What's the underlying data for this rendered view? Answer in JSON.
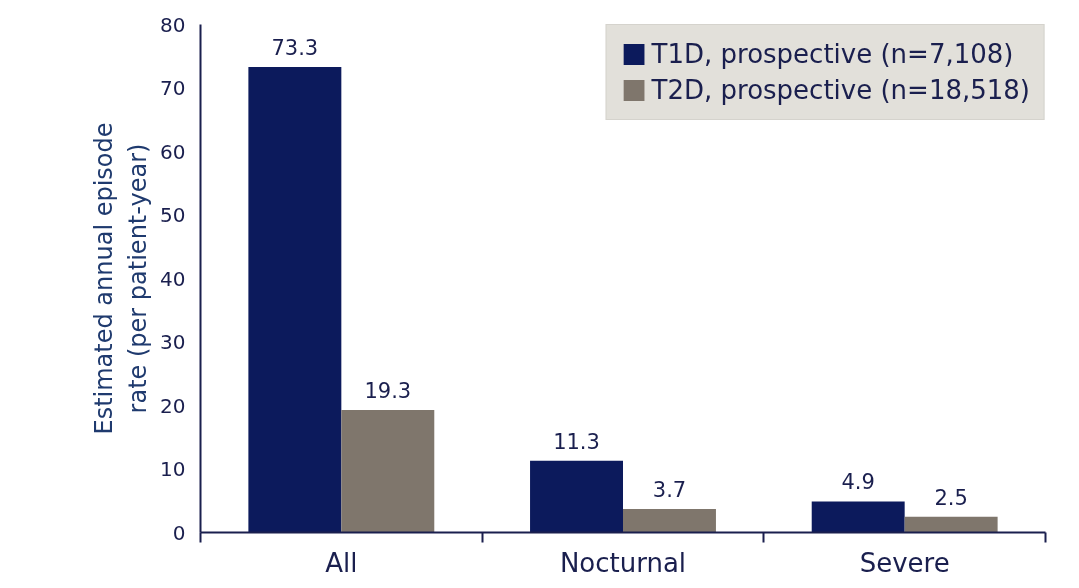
{
  "chart_data": {
    "type": "bar",
    "ylabel": "Estimated annual episode\nrate (per patient-year)",
    "categories": [
      "All",
      "Nocturnal",
      "Severe"
    ],
    "series": [
      {
        "name": "T1D, prospective (n=7,108)",
        "color": "#0c1a5c",
        "values": [
          73.3,
          11.3,
          4.9
        ]
      },
      {
        "name": "T2D, prospective (n=18,518)",
        "color": "#7f766c",
        "values": [
          19.3,
          3.7,
          2.5
        ]
      }
    ],
    "ylim": [
      0,
      80
    ],
    "yticks": [
      0,
      10,
      20,
      30,
      40,
      50,
      60,
      70,
      80
    ],
    "data_labels": true,
    "legend": "top right",
    "grid": false
  }
}
